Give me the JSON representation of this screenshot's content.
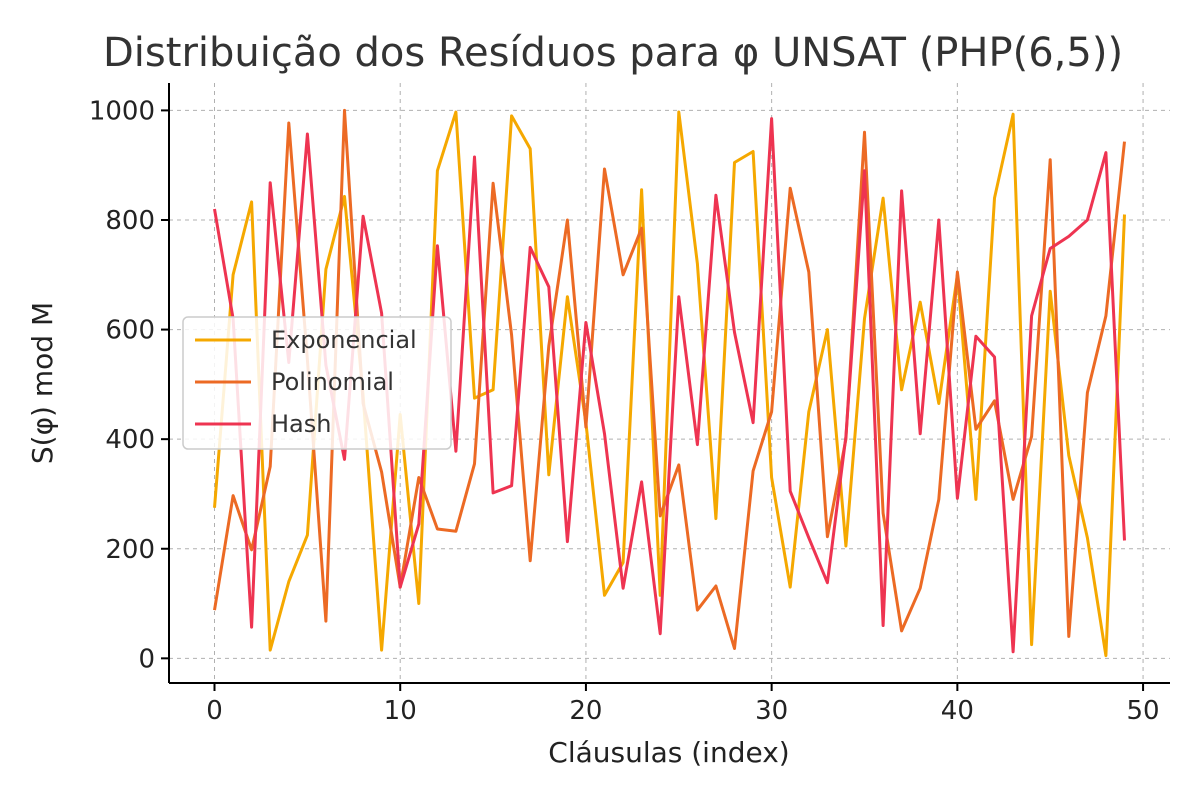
{
  "chart_data": {
    "type": "line",
    "title": "Distribuição dos Resíduos para φ UNSAT (PHP(6,5))",
    "xlabel": "Cláusulas (index)",
    "ylabel": "S(φ) mod M",
    "xlim": [
      -2.45,
      51.45
    ],
    "ylim": [
      -45,
      1050
    ],
    "xticks": [
      0,
      10,
      20,
      30,
      40,
      50
    ],
    "yticks": [
      0,
      200,
      400,
      600,
      800,
      1000
    ],
    "grid": true,
    "legend_position": "center-left",
    "x": [
      0,
      1,
      2,
      3,
      4,
      5,
      6,
      7,
      8,
      9,
      10,
      11,
      12,
      13,
      14,
      15,
      16,
      17,
      18,
      19,
      20,
      21,
      22,
      23,
      24,
      25,
      26,
      27,
      28,
      29,
      30,
      31,
      32,
      33,
      34,
      35,
      36,
      37,
      38,
      39,
      40,
      41,
      42,
      43,
      44,
      45,
      46,
      47,
      48,
      49
    ],
    "series": [
      {
        "name": "Exponencial",
        "color": "#f5a800",
        "values": [
          275,
          700,
          833,
          15,
          140,
          225,
          710,
          843,
          480,
          15,
          445,
          100,
          890,
          997,
          475,
          490,
          990,
          930,
          335,
          660,
          430,
          115,
          175,
          855,
          115,
          997,
          720,
          255,
          905,
          925,
          330,
          130,
          450,
          600,
          205,
          620,
          840,
          490,
          650,
          465,
          700,
          290,
          840,
          993,
          25,
          670,
          370,
          220,
          5,
          810
        ]
      },
      {
        "name": "Polinomial",
        "color": "#ec6a24",
        "values": [
          88,
          297,
          198,
          350,
          977,
          545,
          68,
          1000,
          465,
          340,
          130,
          330,
          236,
          232,
          355,
          867,
          590,
          178,
          570,
          800,
          422,
          893,
          700,
          785,
          260,
          353,
          88,
          132,
          18,
          342,
          450,
          858,
          705,
          222,
          400,
          960,
          265,
          50,
          128,
          290,
          705,
          418,
          470,
          290,
          405,
          910,
          40,
          485,
          625,
          943
        ]
      },
      {
        "name": "Hash",
        "color": "#ee3451",
        "values": [
          820,
          620,
          57,
          868,
          540,
          957,
          535,
          363,
          807,
          630,
          130,
          245,
          753,
          378,
          915,
          302,
          315,
          750,
          678,
          213,
          613,
          410,
          128,
          322,
          45,
          660,
          390,
          845,
          595,
          430,
          985,
          305,
          220,
          138,
          405,
          890,
          60,
          853,
          410,
          800,
          292,
          588,
          550,
          12,
          625,
          748,
          770,
          800,
          923,
          215
        ]
      }
    ]
  }
}
